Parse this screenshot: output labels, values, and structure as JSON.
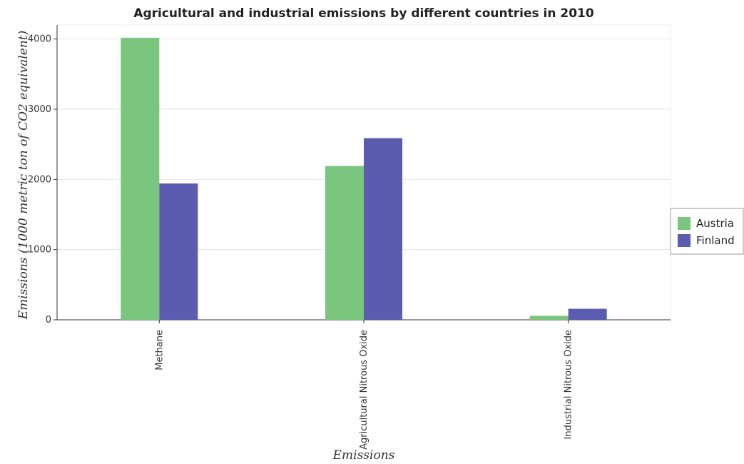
{
  "chart_data": {
    "type": "bar",
    "title": "Agricultural and industrial emissions by different countries in 2010",
    "xlabel": "Emissions",
    "ylabel": "Emissions (1000 metric ton of CO2 equivalent)",
    "categories": [
      "Methane",
      "Agricultural Nitrous Oxide",
      "Industrial Nitrous Oxide"
    ],
    "series": [
      {
        "name": "Austria",
        "color": "#7bc67e",
        "values": [
          4018,
          2192,
          57
        ]
      },
      {
        "name": "Finland",
        "color": "#5b5bb0",
        "values": [
          1942,
          2588,
          157
        ]
      }
    ],
    "ylim": [
      0,
      4200
    ],
    "yticks": [
      0,
      1000,
      2000,
      3000,
      4000
    ],
    "grid": true,
    "legend_position": "right"
  }
}
